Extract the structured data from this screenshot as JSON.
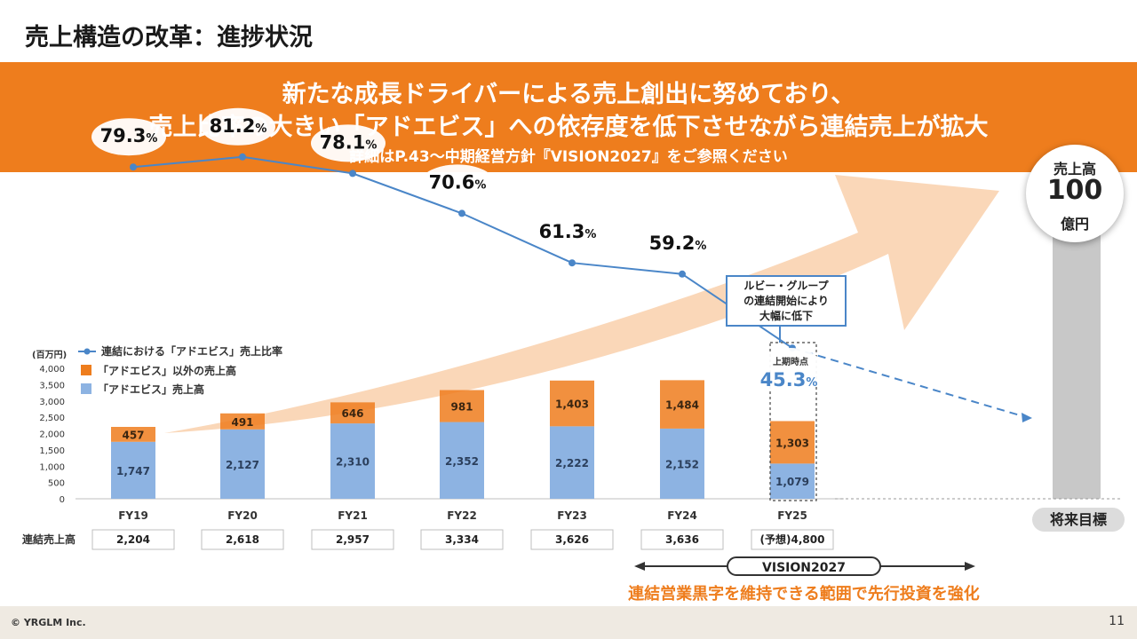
{
  "title": "売上構造の改革：進捗状況",
  "banner": {
    "line1": "新たな成長ドライバーによる売上創出に努めており、",
    "line2": "売上比率の大きい「アドエビス」への依存度を低下させながら連結売上が拡大",
    "line3": "詳細はP.43～中期経営方針『VISION2027』をご参照ください"
  },
  "target": {
    "line1": "売上高",
    "value": "100",
    "unit": "億円",
    "label": "将来目標"
  },
  "note": {
    "lines": [
      "ルビー・グループ",
      "の連結開始により",
      "大幅に低下"
    ]
  },
  "h1_label": "上期時点",
  "policy": "連結営業黒字を維持できる範囲で先行投資を強化",
  "vision_label": "VISION2027",
  "footer": {
    "copyright": "© YRGLM Inc.",
    "page": "11"
  },
  "colors": {
    "orange": "#ee7d1d",
    "blue_bar": "#8db3e2",
    "line_blue": "#4a86c8",
    "arrow": "#f8c9a0"
  },
  "chart_data": {
    "type": "bar",
    "stacked": true,
    "unit_label": "(百万円)",
    "categories": [
      "FY19",
      "FY20",
      "FY21",
      "FY22",
      "FY23",
      "FY24",
      "FY25"
    ],
    "ylim": [
      0,
      4000
    ],
    "yticks": [
      "0",
      "500",
      "1,000",
      "1,500",
      "2,000",
      "2,500",
      "3,000",
      "3,500",
      "4,000"
    ],
    "series": [
      {
        "name": "「アドエビス」売上高",
        "values": [
          1747,
          2127,
          2310,
          2352,
          2222,
          2152,
          1079
        ],
        "labels": [
          "1,747",
          "2,127",
          "2,310",
          "2,352",
          "2,222",
          "2,152",
          "1,079"
        ]
      },
      {
        "name": "「アドエビス」以外の売上高",
        "values": [
          457,
          491,
          646,
          981,
          1403,
          1484,
          1303
        ],
        "labels": [
          "457",
          "491",
          "646",
          "981",
          "1,403",
          "1,484",
          "1,303"
        ]
      }
    ],
    "ratio_series": {
      "name": "連結における「アドエビス」売上比率",
      "values": [
        79.3,
        81.2,
        78.1,
        70.6,
        61.3,
        59.2,
        45.3
      ],
      "labels": [
        "79.3",
        "81.2",
        "78.1",
        "70.6",
        "61.3",
        "59.2",
        "45.3"
      ],
      "unit": "%"
    },
    "consolidated": {
      "label": "連結売上高",
      "values": [
        "2,204",
        "2,618",
        "2,957",
        "3,334",
        "3,626",
        "3,636",
        "(予想)4,800"
      ]
    }
  }
}
